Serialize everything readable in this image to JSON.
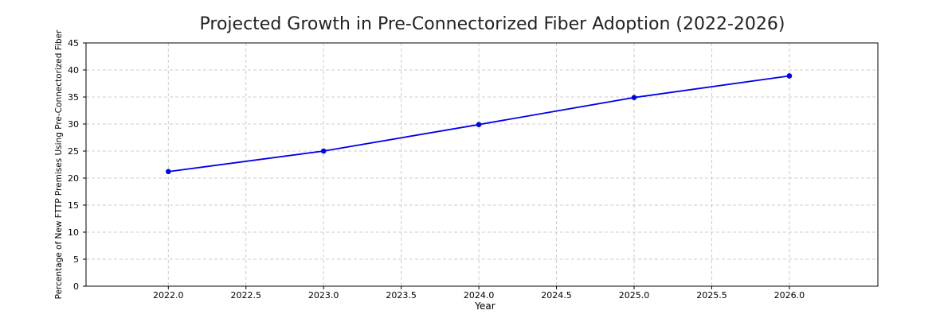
{
  "chart_data": {
    "type": "line",
    "title": "Projected Growth in Pre-Connectorized Fiber Adoption (2022-2026)",
    "xlabel": "Year",
    "ylabel": "Percentage of New FTTP Premises Using Pre-Connectorized Fiber",
    "xlim": [
      2021.47,
      2026.57
    ],
    "ylim": [
      0,
      45
    ],
    "xticks": [
      2022.0,
      2022.5,
      2023.0,
      2023.5,
      2024.0,
      2024.5,
      2025.0,
      2025.5,
      2026.0
    ],
    "xtick_labels": [
      "2022.0",
      "2022.5",
      "2023.0",
      "2023.5",
      "2024.0",
      "2024.5",
      "2025.0",
      "2025.5",
      "2026.0"
    ],
    "yticks": [
      0,
      5,
      10,
      15,
      20,
      25,
      30,
      35,
      40,
      45
    ],
    "ytick_labels": [
      "0",
      "5",
      "10",
      "15",
      "20",
      "25",
      "30",
      "35",
      "40",
      "45"
    ],
    "grid": true,
    "series": [
      {
        "color": "#0000ee",
        "marker": "circle",
        "x": [
          2022,
          2023,
          2024,
          2025,
          2026
        ],
        "y": [
          21.2,
          25.0,
          29.9,
          34.9,
          38.9
        ]
      }
    ]
  }
}
